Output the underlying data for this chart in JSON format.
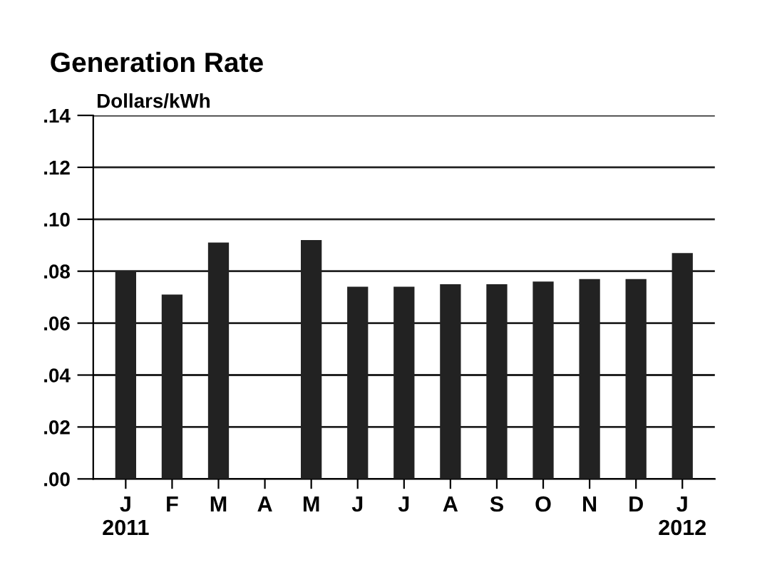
{
  "chart_data": {
    "type": "bar",
    "title": "Generation Rate",
    "ylabel": "Dollars/kWh",
    "categories": [
      "J\n2011",
      "F",
      "M",
      "A",
      "M",
      "J",
      "J",
      "A",
      "S",
      "O",
      "N",
      "D",
      "J\n2012"
    ],
    "values": [
      0.08,
      0.071,
      0.091,
      null,
      0.092,
      0.074,
      0.074,
      0.075,
      0.075,
      0.076,
      0.077,
      0.077,
      0.087
    ],
    "color": "#222222",
    "ylim": [
      0,
      0.14
    ],
    "yticks": [
      {
        "value": 0,
        "label": ".00"
      },
      {
        "value": 0.02,
        "label": ".02"
      },
      {
        "value": 0.04,
        "label": ".04"
      },
      {
        "value": 0.06,
        "label": ".06"
      },
      {
        "value": 0.08,
        "label": ".08"
      },
      {
        "value": 0.1,
        "label": ".10"
      },
      {
        "value": 0.12,
        "label": ".12"
      },
      {
        "value": 0.14,
        "label": ".14"
      }
    ],
    "grid": "y"
  }
}
